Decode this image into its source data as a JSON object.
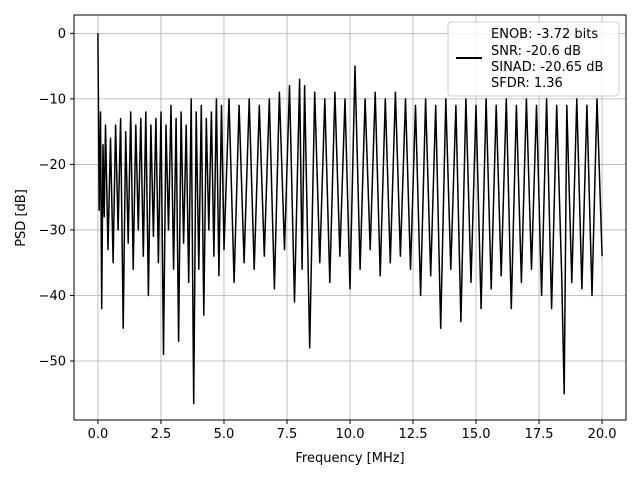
{
  "chart_data": {
    "type": "line",
    "title": "",
    "xlabel": "Frequency [MHz]",
    "ylabel": "PSD [dB]",
    "xlim": [
      -0.95,
      20.95
    ],
    "ylim": [
      -59.0,
      2.8
    ],
    "grid": true,
    "x_ticks": [
      0.0,
      2.5,
      5.0,
      7.5,
      10.0,
      12.5,
      15.0,
      17.5,
      20.0
    ],
    "x_tick_labels": [
      "0.0",
      "2.5",
      "5.0",
      "7.5",
      "10.0",
      "12.5",
      "15.0",
      "17.5",
      "20.0"
    ],
    "y_ticks": [
      0,
      -10,
      -20,
      -30,
      -40,
      -50
    ],
    "y_tick_labels": [
      "0",
      "−10",
      "−20",
      "−30",
      "−40",
      "−50"
    ],
    "legend": {
      "placement": "upper right",
      "entries": [
        "ENOB: -3.72 bits",
        "SNR: -20.6 dB",
        "SINAD: -20.65 dB",
        "SFDR: 1.36"
      ]
    },
    "series": [
      {
        "color": "#000000",
        "x": [
          0.0,
          0.05,
          0.1,
          0.15,
          0.2,
          0.25,
          0.3,
          0.4,
          0.5,
          0.6,
          0.7,
          0.8,
          0.9,
          1.0,
          1.1,
          1.2,
          1.3,
          1.4,
          1.5,
          1.6,
          1.7,
          1.8,
          1.9,
          2.0,
          2.1,
          2.2,
          2.3,
          2.4,
          2.5,
          2.6,
          2.7,
          2.8,
          2.9,
          3.0,
          3.1,
          3.2,
          3.3,
          3.4,
          3.5,
          3.6,
          3.7,
          3.8,
          3.9,
          4.0,
          4.1,
          4.2,
          4.3,
          4.4,
          4.5,
          4.6,
          4.7,
          4.8,
          4.9,
          5.0,
          5.2,
          5.4,
          5.6,
          5.8,
          6.0,
          6.2,
          6.4,
          6.6,
          6.8,
          7.0,
          7.2,
          7.4,
          7.6,
          7.8,
          8.0,
          8.1,
          8.2,
          8.4,
          8.6,
          8.8,
          9.0,
          9.2,
          9.4,
          9.6,
          9.8,
          10.0,
          10.2,
          10.4,
          10.6,
          10.8,
          11.0,
          11.2,
          11.4,
          11.6,
          11.8,
          12.0,
          12.2,
          12.4,
          12.6,
          12.8,
          13.0,
          13.2,
          13.4,
          13.6,
          13.8,
          14.0,
          14.2,
          14.4,
          14.6,
          14.8,
          15.0,
          15.2,
          15.4,
          15.6,
          15.8,
          16.0,
          16.2,
          16.4,
          16.6,
          16.8,
          17.0,
          17.2,
          17.4,
          17.6,
          17.8,
          18.0,
          18.2,
          18.4,
          18.5,
          18.6,
          18.8,
          19.0,
          19.2,
          19.4,
          19.6,
          19.8,
          20.0
        ],
        "y": [
          0.0,
          -27.0,
          -12.0,
          -42.0,
          -17.0,
          -28.0,
          -14.0,
          -33.0,
          -16.0,
          -35.0,
          -14.0,
          -30.0,
          -13.0,
          -45.0,
          -15.0,
          -32.0,
          -12.0,
          -36.0,
          -14.0,
          -30.0,
          -13.0,
          -34.0,
          -12.0,
          -40.0,
          -14.0,
          -31.0,
          -13.0,
          -35.0,
          -12.0,
          -49.0,
          -14.0,
          -30.0,
          -11.0,
          -36.0,
          -13.0,
          -47.0,
          -12.0,
          -32.0,
          -14.0,
          -38.0,
          -10.0,
          -56.5,
          -12.0,
          -36.0,
          -11.0,
          -43.0,
          -13.0,
          -30.0,
          -12.0,
          -34.0,
          -10.0,
          -37.0,
          -11.0,
          -33.0,
          -10.0,
          -38.0,
          -11.0,
          -35.0,
          -10.0,
          -36.0,
          -11.0,
          -34.0,
          -10.0,
          -39.0,
          -9.0,
          -33.0,
          -8.0,
          -41.0,
          -7.0,
          -36.0,
          -8.0,
          -48.0,
          -9.0,
          -35.0,
          -10.0,
          -38.0,
          -9.0,
          -34.0,
          -10.0,
          -39.0,
          -5.0,
          -36.0,
          -10.0,
          -33.0,
          -9.0,
          -37.0,
          -10.0,
          -35.0,
          -9.0,
          -34.0,
          -10.0,
          -36.0,
          -11.0,
          -40.0,
          -10.0,
          -37.0,
          -11.0,
          -45.0,
          -10.0,
          -36.0,
          -11.0,
          -44.0,
          -10.0,
          -38.0,
          -11.0,
          -42.0,
          -10.0,
          -39.0,
          -11.0,
          -37.0,
          -10.0,
          -42.0,
          -11.0,
          -38.0,
          -10.0,
          -36.0,
          -11.0,
          -40.0,
          -10.0,
          -42.0,
          -11.0,
          -37.0,
          -55.0,
          -11.0,
          -38.0,
          -10.0,
          -39.0,
          -11.0,
          -40.0,
          -10.0,
          -34.0
        ]
      }
    ]
  }
}
